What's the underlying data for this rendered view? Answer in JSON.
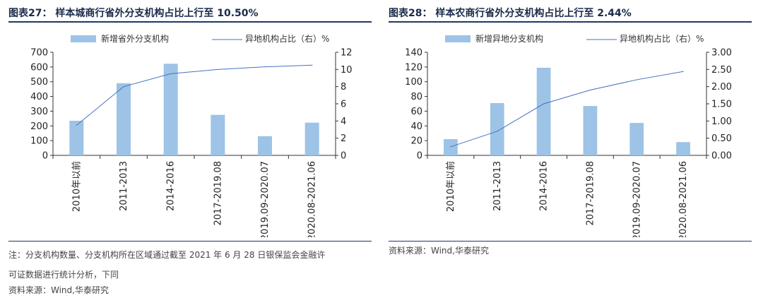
{
  "charts": [
    {
      "title": "图表27：  样本城商行省外分支机构占比上行至 10.50%",
      "legend_bar": "新增省外分支机构",
      "legend_line": "异地机构占比（右）%",
      "notes": [
        "注：分支机构数量、分支机构所在区域通过截至 2021 年 6 月 28 日银保监会金融许",
        "可证数据进行统计分析，下同",
        "资料来源：Wind,华泰研究"
      ]
    },
    {
      "title": "图表28：  样本农商行省外分支机构占比上行至 2.44%",
      "legend_bar": "新增异地分支机构",
      "legend_line": "异地机构占比（右）%",
      "notes": [
        "资料来源：Wind,华泰研究"
      ]
    }
  ],
  "chart_data": [
    {
      "type": "bar",
      "categories": [
        "2010年以前",
        "2011-2013",
        "2014-2016",
        "2017-2019.08",
        "2019.09-2020.07",
        "2020.08-2021.06"
      ],
      "series": [
        {
          "name": "新增省外分支机构",
          "type": "bar",
          "axis": "left",
          "values": [
            235,
            490,
            622,
            275,
            130,
            222
          ]
        },
        {
          "name": "异地机构占比（右）%",
          "type": "line",
          "axis": "right",
          "values": [
            3.5,
            8.0,
            9.5,
            10.0,
            10.3,
            10.5
          ]
        }
      ],
      "ylim": [
        0,
        700
      ],
      "yticks": [
        "0",
        "100",
        "200",
        "300",
        "400",
        "500",
        "600",
        "700"
      ],
      "y2lim": [
        0,
        12
      ],
      "y2ticks": [
        "0",
        "2",
        "4",
        "6",
        "8",
        "10",
        "12"
      ],
      "bar_color": "#9dc3e6",
      "line_color": "#4472c4"
    },
    {
      "type": "bar",
      "categories": [
        "2010年以前",
        "2011-2013",
        "2014-2016",
        "2017-2019.08",
        "2019.09-2020.07",
        "2020.08-2021.06"
      ],
      "series": [
        {
          "name": "新增异地分支机构",
          "type": "bar",
          "axis": "left",
          "values": [
            22,
            71,
            119,
            67,
            44,
            18
          ]
        },
        {
          "name": "异地机构占比（右）%",
          "type": "line",
          "axis": "right",
          "values": [
            0.25,
            0.7,
            1.5,
            1.9,
            2.2,
            2.44
          ]
        }
      ],
      "ylim": [
        0,
        140
      ],
      "yticks": [
        "0",
        "20",
        "40",
        "60",
        "80",
        "100",
        "120",
        "140"
      ],
      "y2lim": [
        0,
        3
      ],
      "y2ticks": [
        "0.00",
        "0.50",
        "1.00",
        "1.50",
        "2.00",
        "2.50",
        "3.00"
      ],
      "bar_color": "#9dc3e6",
      "line_color": "#4472c4"
    }
  ]
}
